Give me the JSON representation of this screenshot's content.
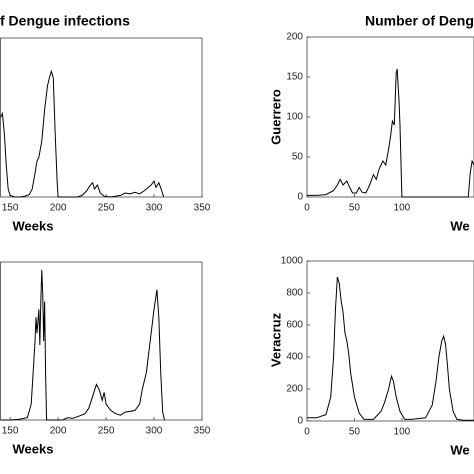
{
  "chart_data": [
    {
      "type": "line",
      "title": "f Dengue infections",
      "xlabel": "Weeks",
      "xlim": [
        140,
        350
      ],
      "ylim": [
        0,
        200
      ],
      "xticks": [
        150,
        200,
        250,
        300,
        350
      ],
      "series": [
        {
          "color": "#000000",
          "x": [
            140,
            142,
            144,
            146,
            148,
            150,
            155,
            160,
            165,
            170,
            173,
            176,
            178,
            180,
            183,
            186,
            189,
            191,
            193,
            195,
            197,
            199,
            200,
            210,
            220,
            225,
            230,
            233,
            236,
            238,
            241,
            244,
            248,
            255,
            265,
            270,
            275,
            280,
            285,
            290,
            294,
            297,
            300,
            302,
            305,
            308,
            310
          ],
          "values": [
            100,
            105,
            80,
            40,
            10,
            2,
            0,
            0,
            1,
            3,
            10,
            30,
            45,
            50,
            70,
            110,
            140,
            150,
            158,
            150,
            80,
            20,
            0,
            0,
            0,
            2,
            8,
            14,
            18,
            10,
            15,
            5,
            1,
            0,
            2,
            5,
            4,
            6,
            4,
            8,
            12,
            15,
            20,
            12,
            18,
            8,
            0
          ]
        }
      ]
    },
    {
      "type": "line",
      "title": "Number of Deng",
      "xlabel": "We",
      "ylabel": "Guerrero",
      "xlim": [
        0,
        176
      ],
      "ylim": [
        0,
        200
      ],
      "xticks": [
        0,
        50,
        100
      ],
      "yticks": [
        0,
        50,
        100,
        150,
        200
      ],
      "series": [
        {
          "color": "#000000",
          "x": [
            0,
            10,
            20,
            28,
            32,
            35,
            38,
            42,
            45,
            48,
            52,
            55,
            58,
            62,
            66,
            70,
            73,
            76,
            80,
            83,
            86,
            88,
            90,
            92,
            94,
            95,
            96,
            97,
            98,
            100,
            105,
            170,
            172,
            174,
            176
          ],
          "values": [
            2,
            2,
            3,
            8,
            15,
            22,
            15,
            20,
            12,
            5,
            5,
            12,
            6,
            5,
            15,
            28,
            22,
            35,
            45,
            40,
            60,
            75,
            95,
            90,
            155,
            160,
            140,
            120,
            90,
            0,
            0,
            0,
            30,
            45,
            40
          ]
        }
      ]
    },
    {
      "type": "line",
      "xlabel": "Weeks",
      "xlim": [
        140,
        350
      ],
      "ylim": [
        0,
        200
      ],
      "xticks": [
        150,
        200,
        250,
        300,
        350
      ],
      "series": [
        {
          "color": "#000000",
          "x": [
            140,
            150,
            160,
            168,
            172,
            174,
            176,
            177,
            178,
            180,
            181,
            182,
            183,
            184,
            185,
            186,
            187,
            188,
            195,
            205,
            210,
            215,
            222,
            228,
            232,
            236,
            240,
            243,
            246,
            248,
            250,
            255,
            260,
            265,
            270,
            280,
            285,
            288,
            292,
            295,
            298,
            300,
            303,
            305,
            307,
            309,
            311
          ],
          "values": [
            0,
            0,
            1,
            3,
            20,
            60,
            100,
            130,
            110,
            140,
            95,
            150,
            190,
            160,
            100,
            150,
            60,
            0,
            0,
            0,
            3,
            2,
            5,
            8,
            15,
            30,
            45,
            38,
            25,
            35,
            20,
            12,
            8,
            6,
            10,
            12,
            20,
            40,
            60,
            90,
            120,
            140,
            165,
            130,
            60,
            10,
            0
          ]
        }
      ]
    },
    {
      "type": "line",
      "xlabel": "We",
      "ylabel": "Veracruz",
      "xlim": [
        0,
        176
      ],
      "ylim": [
        0,
        1000
      ],
      "xticks": [
        0,
        50,
        100
      ],
      "yticks": [
        0,
        200,
        400,
        600,
        800,
        1000
      ],
      "series": [
        {
          "color": "#000000",
          "x": [
            0,
            10,
            20,
            25,
            28,
            30,
            32,
            34,
            36,
            38,
            40,
            42,
            44,
            46,
            50,
            55,
            60,
            70,
            78,
            82,
            86,
            89,
            91,
            94,
            98,
            103,
            110,
            125,
            132,
            136,
            139,
            142,
            144,
            146,
            148,
            150,
            154,
            158,
            165,
            176
          ],
          "values": [
            20,
            20,
            40,
            150,
            400,
            700,
            900,
            860,
            750,
            680,
            550,
            500,
            420,
            300,
            150,
            50,
            10,
            10,
            60,
            120,
            200,
            280,
            250,
            150,
            60,
            10,
            10,
            20,
            100,
            250,
            400,
            500,
            530,
            480,
            350,
            200,
            60,
            10,
            5,
            5
          ]
        }
      ]
    }
  ]
}
